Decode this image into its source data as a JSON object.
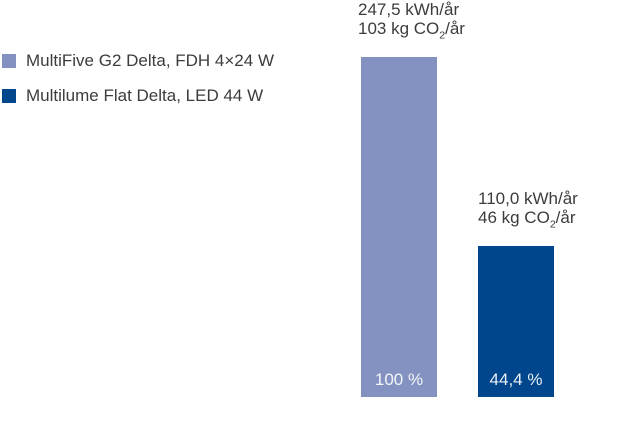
{
  "colors": {
    "bar_light": "#8492c1",
    "bar_dark": "#00468c",
    "text": "#3c3c3b",
    "bar_value_text": "#ffffff",
    "background": "#ffffff"
  },
  "legend": {
    "items": [
      {
        "label": "MultiFive G2 Delta, FDH 4×24 W",
        "color": "#8492c1"
      },
      {
        "label": "Multilume Flat Delta, LED 44 W",
        "color": "#00468c"
      }
    ]
  },
  "chart_data": {
    "type": "bar",
    "title": "",
    "xlabel": "",
    "ylabel": "",
    "ylim": [
      0,
      100
    ],
    "grid": false,
    "legend_position": "top-left",
    "unit_energy": "kWh/år",
    "unit_co2": "kg CO2/år",
    "series": [
      {
        "name": "MultiFive G2 Delta, FDH 4×24 W",
        "kwh_per_year": 247.5,
        "co2_kg_per_year": 103,
        "percent": 100,
        "color": "#8492c1",
        "annotation_energy": "247,5 kWh/år",
        "annotation_co2_prefix": "103 kg CO",
        "annotation_co2_sub": "2",
        "annotation_co2_suffix": "/år",
        "bar_label": "100 %"
      },
      {
        "name": "Multilume Flat Delta, LED 44 W",
        "kwh_per_year": 110.0,
        "co2_kg_per_year": 46,
        "percent": 44.4,
        "color": "#00468c",
        "annotation_energy": "110,0 kWh/år",
        "annotation_co2_prefix": "46 kg CO",
        "annotation_co2_sub": "2",
        "annotation_co2_suffix": "/år",
        "bar_label": "44,4 %"
      }
    ]
  }
}
